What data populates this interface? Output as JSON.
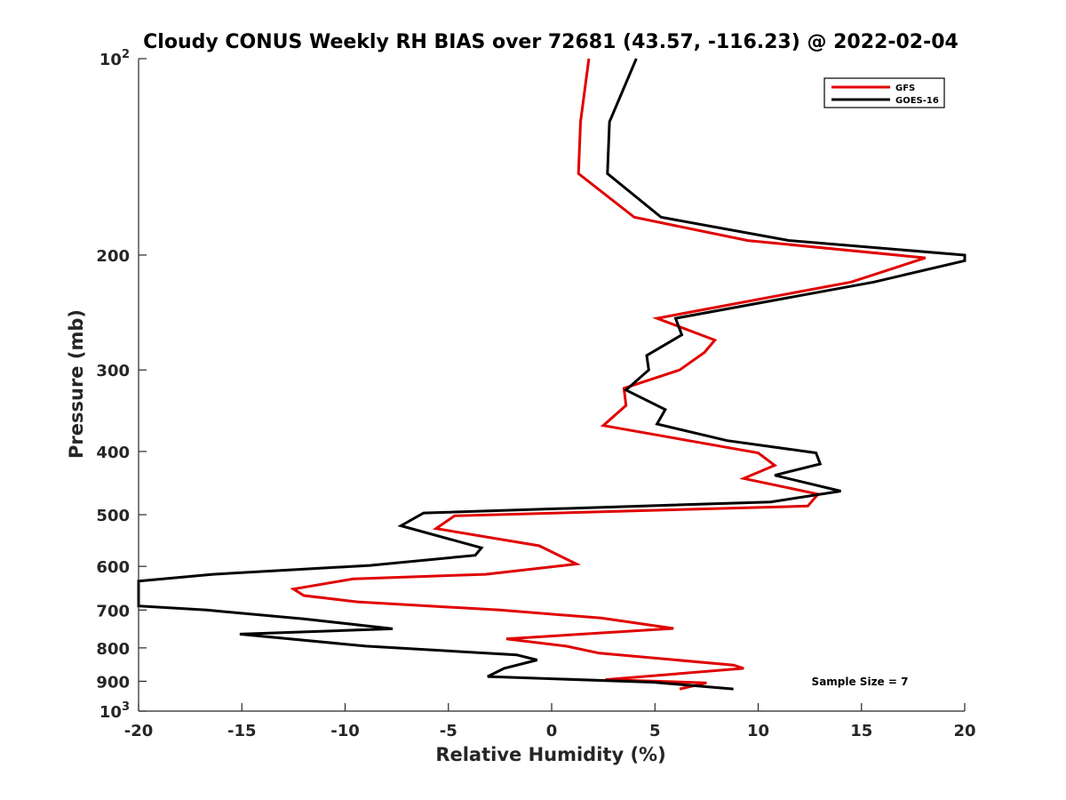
{
  "chart_data": {
    "type": "line",
    "title": "Cloudy CONUS Weekly RH BIAS over 72681 (43.57, -116.23) @ 2022-02-04",
    "xlabel": "Relative Humidity (%)",
    "ylabel": "Pressure (mb)",
    "xlim": [
      -20,
      20
    ],
    "ylim": [
      100,
      1000
    ],
    "y_scale": "log",
    "y_direction": "reversed",
    "x_ticks": [
      "-20",
      "-15",
      "-10",
      "-5",
      "0",
      "5",
      "10",
      "15",
      "20"
    ],
    "y_ticks": [
      {
        "value": 100,
        "base": "10",
        "exp": "2"
      },
      {
        "value": 200,
        "label": "200"
      },
      {
        "value": 300,
        "label": "300"
      },
      {
        "value": 400,
        "label": "400"
      },
      {
        "value": 500,
        "label": "500"
      },
      {
        "value": 600,
        "label": "600"
      },
      {
        "value": 700,
        "label": "700"
      },
      {
        "value": 800,
        "label": "800"
      },
      {
        "value": 900,
        "label": "900"
      },
      {
        "value": 1000,
        "base": "10",
        "exp": "3"
      }
    ],
    "legend_position": "top-right",
    "annotation": "Sample Size = 7",
    "series": [
      {
        "name": "GFS",
        "color": "#e00000",
        "points": [
          [
            1.8,
            100
          ],
          [
            1.4,
            125
          ],
          [
            1.3,
            150
          ],
          [
            4.0,
            175
          ],
          [
            9.5,
            190
          ],
          [
            18.1,
            202
          ],
          [
            14.5,
            220
          ],
          [
            5.1,
            250
          ],
          [
            7.9,
            270
          ],
          [
            7.4,
            282
          ],
          [
            6.2,
            300
          ],
          [
            3.5,
            320
          ],
          [
            3.6,
            340
          ],
          [
            2.5,
            365
          ],
          [
            10.0,
            402
          ],
          [
            10.8,
            420
          ],
          [
            9.3,
            440
          ],
          [
            12.9,
            465
          ],
          [
            12.4,
            485
          ],
          [
            -4.7,
            502
          ],
          [
            -5.6,
            525
          ],
          [
            -0.6,
            558
          ],
          [
            1.2,
            595
          ],
          [
            -3.2,
            617
          ],
          [
            -9.6,
            627
          ],
          [
            -12.5,
            650
          ],
          [
            -12.0,
            665
          ],
          [
            -9.4,
            680
          ],
          [
            -2.5,
            700
          ],
          [
            2.4,
            720
          ],
          [
            5.9,
            747
          ],
          [
            -2.2,
            775
          ],
          [
            0.7,
            795
          ],
          [
            2.3,
            815
          ],
          [
            8.8,
            850
          ],
          [
            9.3,
            860
          ],
          [
            2.6,
            895
          ],
          [
            7.5,
            905
          ],
          [
            6.2,
            925
          ]
        ]
      },
      {
        "name": "GOES-16",
        "color": "#000000",
        "points": [
          [
            4.1,
            100
          ],
          [
            2.8,
            125
          ],
          [
            2.7,
            150
          ],
          [
            5.3,
            175
          ],
          [
            11.5,
            190
          ],
          [
            20.0,
            200
          ],
          [
            20.0,
            204
          ],
          [
            15.6,
            220
          ],
          [
            6.0,
            250
          ],
          [
            6.3,
            265
          ],
          [
            4.6,
            285
          ],
          [
            4.7,
            300
          ],
          [
            3.6,
            322
          ],
          [
            5.5,
            345
          ],
          [
            5.1,
            363
          ],
          [
            8.5,
            385
          ],
          [
            12.8,
            402
          ],
          [
            13.0,
            418
          ],
          [
            10.8,
            435
          ],
          [
            14.0,
            460
          ],
          [
            10.6,
            478
          ],
          [
            -6.2,
            497
          ],
          [
            -7.3,
            520
          ],
          [
            -3.4,
            562
          ],
          [
            -3.7,
            577
          ],
          [
            -8.8,
            598
          ],
          [
            -16.4,
            617
          ],
          [
            -20.0,
            632
          ],
          [
            -20.0,
            690
          ],
          [
            -16.7,
            700
          ],
          [
            -12.0,
            722
          ],
          [
            -7.7,
            748
          ],
          [
            -15.1,
            762
          ],
          [
            -9.0,
            795
          ],
          [
            -1.7,
            820
          ],
          [
            -0.7,
            835
          ],
          [
            -2.3,
            860
          ],
          [
            -3.1,
            885
          ],
          [
            4.9,
            903
          ],
          [
            8.8,
            925
          ]
        ]
      }
    ]
  }
}
